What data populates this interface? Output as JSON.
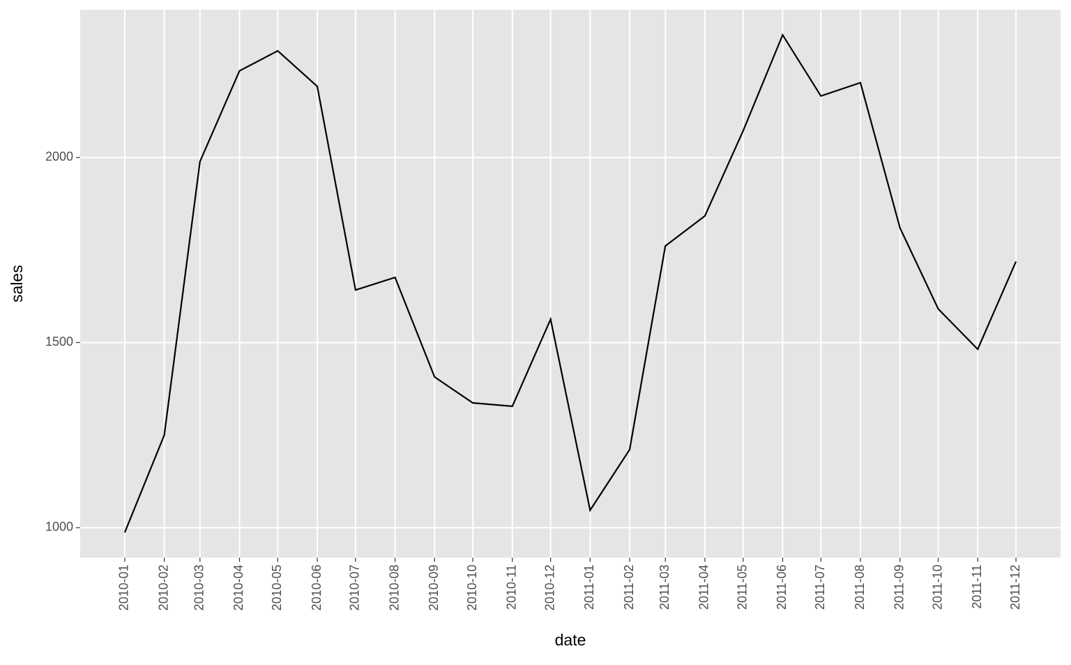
{
  "chart_data": {
    "type": "line",
    "x": [
      "2010-01",
      "2010-02",
      "2010-03",
      "2010-04",
      "2010-05",
      "2010-06",
      "2010-07",
      "2010-08",
      "2010-09",
      "2010-10",
      "2010-11",
      "2010-12",
      "2011-01",
      "2011-02",
      "2011-03",
      "2011-04",
      "2011-05",
      "2011-06",
      "2011-07",
      "2011-08",
      "2011-09",
      "2011-10",
      "2011-11",
      "2011-12"
    ],
    "values": [
      987,
      1250,
      1989,
      2234,
      2288,
      2192,
      1642,
      1676,
      1407,
      1337,
      1328,
      1563,
      1047,
      1211,
      1761,
      1842,
      2072,
      2331,
      2166,
      2202,
      1810,
      1591,
      1482,
      1719
    ],
    "color": "#000000",
    "x_label": "date",
    "y_label": "sales",
    "ylim": [
      919,
      2399
    ],
    "yticks": [
      1000,
      1500,
      2000
    ],
    "grid": true
  }
}
